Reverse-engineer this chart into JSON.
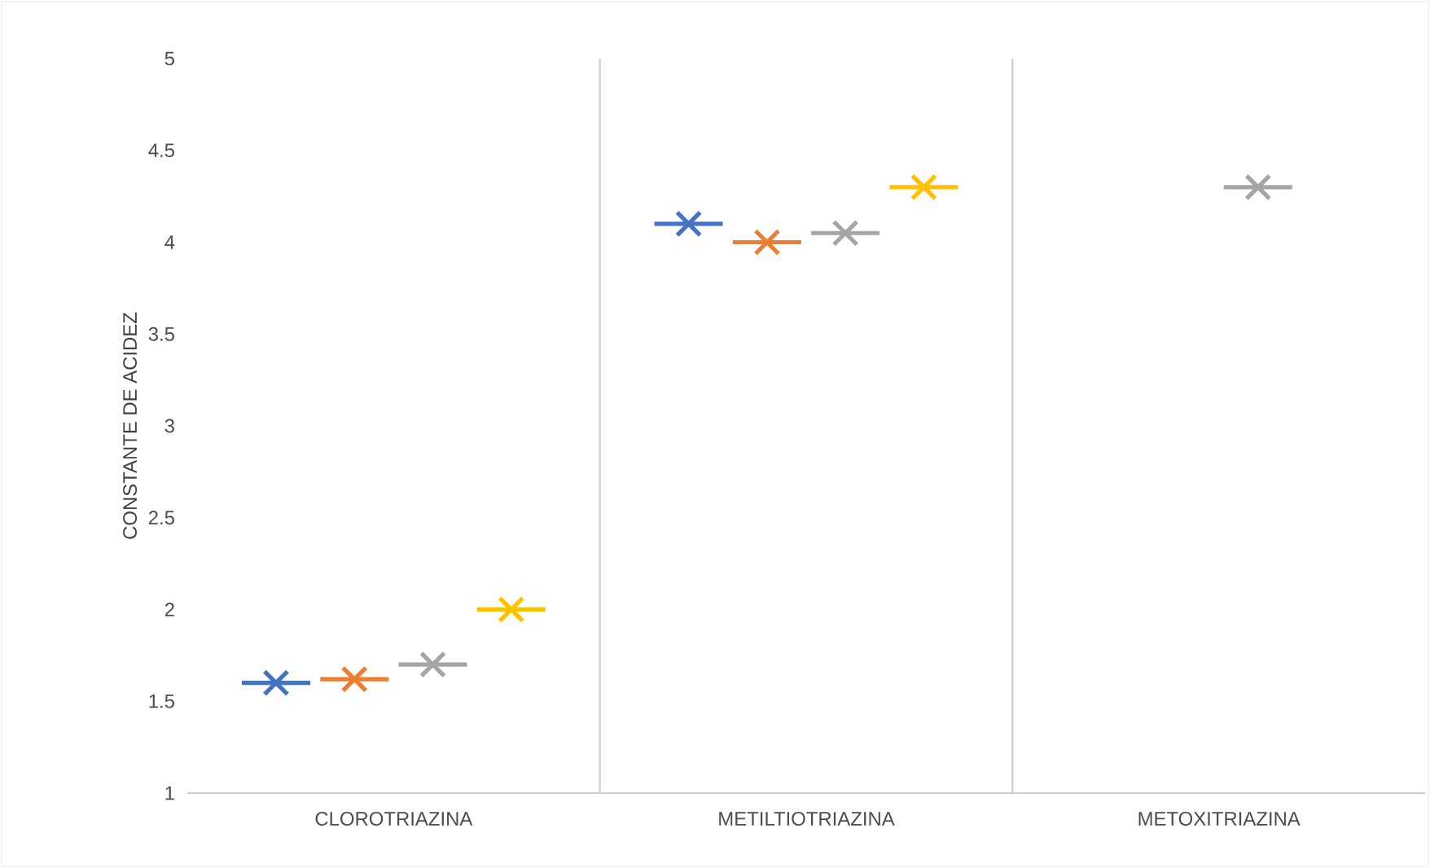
{
  "chart_data": {
    "type": "scatter",
    "ylabel": "CONSTANTE DE ACIDEZ",
    "categories": [
      "CLOROTRIAZINA",
      "METILTIOTRIAZINA",
      "METOXITRIAZINA"
    ],
    "series": [
      {
        "color": "#4472c4",
        "values": [
          1.6,
          4.1,
          null
        ]
      },
      {
        "color": "#ed7d31",
        "values": [
          1.62,
          4.0,
          null
        ]
      },
      {
        "color": "#a5a5a5",
        "values": [
          1.7,
          4.05,
          4.3
        ]
      },
      {
        "color": "#ffc000",
        "values": [
          2.0,
          4.3,
          null
        ]
      }
    ],
    "ylim": [
      1,
      5
    ],
    "yticks": [
      1,
      1.5,
      2,
      2.5,
      3,
      3.5,
      4,
      4.5,
      5
    ],
    "grid": "x",
    "marker": "cross"
  }
}
